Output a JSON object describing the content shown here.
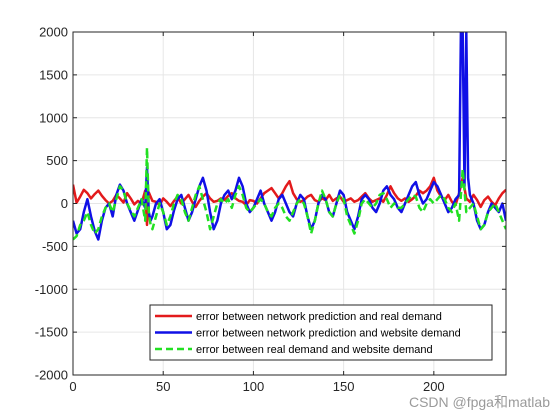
{
  "chart_data": {
    "type": "line",
    "title": "",
    "xlabel": "",
    "ylabel": "",
    "xlim": [
      0,
      240
    ],
    "ylim": [
      -2000,
      2000
    ],
    "xticks": [
      0,
      50,
      100,
      150,
      200
    ],
    "yticks": [
      -2000,
      -1500,
      -1000,
      -500,
      0,
      500,
      1000,
      1500,
      2000
    ],
    "grid": true,
    "legend_position": "bottom-right",
    "series": [
      {
        "name": "error between network prediction and real demand",
        "color": "#e31a1c",
        "style": "solid",
        "x": [
          0,
          2,
          4,
          6,
          8,
          10,
          12,
          14,
          16,
          18,
          20,
          22,
          24,
          26,
          28,
          30,
          32,
          34,
          36,
          38,
          40,
          41,
          42,
          43,
          44,
          46,
          48,
          50,
          52,
          54,
          56,
          58,
          60,
          62,
          64,
          66,
          68,
          70,
          72,
          74,
          76,
          78,
          80,
          82,
          84,
          86,
          88,
          90,
          92,
          94,
          96,
          98,
          100,
          102,
          104,
          106,
          108,
          110,
          112,
          114,
          116,
          118,
          120,
          122,
          124,
          126,
          128,
          130,
          132,
          134,
          136,
          138,
          140,
          142,
          144,
          146,
          148,
          150,
          152,
          154,
          156,
          158,
          160,
          162,
          164,
          166,
          168,
          170,
          172,
          174,
          176,
          178,
          180,
          182,
          184,
          186,
          188,
          190,
          192,
          194,
          196,
          198,
          200,
          202,
          204,
          206,
          208,
          210,
          212,
          214,
          216,
          218,
          220,
          222,
          224,
          226,
          228,
          230,
          232,
          234,
          236,
          238,
          240
        ],
        "y": [
          220,
          10,
          80,
          160,
          120,
          60,
          110,
          150,
          90,
          40,
          0,
          30,
          100,
          60,
          10,
          120,
          60,
          -10,
          30,
          0,
          150,
          -250,
          130,
          80,
          30,
          20,
          -20,
          60,
          20,
          -30,
          30,
          80,
          0,
          50,
          100,
          20,
          -40,
          30,
          80,
          120,
          60,
          20,
          30,
          60,
          40,
          90,
          120,
          60,
          30,
          20,
          -20,
          40,
          30,
          0,
          60,
          120,
          150,
          180,
          120,
          60,
          120,
          200,
          260,
          120,
          50,
          20,
          40,
          80,
          100,
          40,
          20,
          60,
          40,
          100,
          30,
          60,
          80,
          20,
          40,
          60,
          20,
          40,
          80,
          120,
          60,
          20,
          40,
          60,
          20,
          100,
          200,
          120,
          60,
          30,
          60,
          20,
          50,
          90,
          150,
          120,
          150,
          200,
          300,
          150,
          80,
          40,
          100,
          20,
          -20,
          120,
          300,
          60,
          20,
          100,
          40,
          -40,
          40,
          80,
          20,
          -20,
          60,
          120,
          160
        ]
      },
      {
        "name": "error between network prediction and website demand",
        "color": "#1010e6",
        "style": "solid",
        "x": [
          0,
          2,
          4,
          6,
          8,
          10,
          12,
          14,
          16,
          18,
          20,
          22,
          24,
          26,
          28,
          30,
          32,
          34,
          36,
          38,
          40,
          41,
          42,
          43,
          44,
          46,
          48,
          50,
          52,
          54,
          56,
          58,
          60,
          62,
          64,
          66,
          68,
          70,
          72,
          74,
          76,
          78,
          80,
          82,
          84,
          86,
          88,
          90,
          92,
          94,
          96,
          98,
          100,
          102,
          104,
          106,
          108,
          110,
          112,
          114,
          116,
          118,
          120,
          122,
          124,
          126,
          128,
          130,
          132,
          134,
          136,
          138,
          140,
          142,
          144,
          146,
          148,
          150,
          152,
          154,
          156,
          158,
          160,
          162,
          164,
          166,
          168,
          170,
          172,
          174,
          176,
          178,
          180,
          182,
          184,
          186,
          188,
          190,
          192,
          194,
          196,
          198,
          200,
          202,
          204,
          206,
          208,
          210,
          212,
          214,
          215,
          216,
          217,
          218,
          219,
          220,
          222,
          224,
          226,
          228,
          230,
          232,
          234,
          236,
          238,
          240
        ],
        "y": [
          -200,
          -350,
          -300,
          -100,
          50,
          -150,
          -320,
          -420,
          -200,
          -50,
          0,
          -150,
          100,
          220,
          150,
          0,
          -100,
          -200,
          -80,
          50,
          -50,
          420,
          -100,
          -200,
          -150,
          0,
          50,
          -100,
          -300,
          -250,
          -80,
          50,
          100,
          -50,
          -200,
          -100,
          50,
          200,
          300,
          150,
          -100,
          -300,
          -200,
          0,
          100,
          150,
          50,
          150,
          300,
          200,
          0,
          -100,
          -50,
          50,
          150,
          0,
          -100,
          -200,
          -100,
          50,
          100,
          0,
          -100,
          -150,
          0,
          100,
          50,
          -150,
          -300,
          -200,
          0,
          100,
          50,
          -100,
          -150,
          0,
          150,
          100,
          -100,
          -200,
          -300,
          -150,
          50,
          100,
          50,
          -50,
          -100,
          0,
          150,
          200,
          100,
          50,
          -50,
          -100,
          0,
          100,
          200,
          250,
          100,
          0,
          50,
          150,
          250,
          200,
          100,
          0,
          -100,
          -50,
          50,
          100,
          2000,
          2000,
          200,
          2000,
          300,
          100,
          0,
          -200,
          -300,
          -250,
          -100,
          0,
          -50,
          -100,
          0,
          -200
        ]
      },
      {
        "name": "error between real demand and website demand",
        "color": "#22e022",
        "style": "dashed",
        "x": [
          0,
          2,
          4,
          6,
          8,
          10,
          12,
          14,
          16,
          18,
          20,
          22,
          24,
          26,
          28,
          30,
          32,
          34,
          36,
          38,
          40,
          41,
          42,
          43,
          44,
          46,
          48,
          50,
          52,
          54,
          56,
          58,
          60,
          62,
          64,
          66,
          68,
          70,
          72,
          74,
          76,
          78,
          80,
          82,
          84,
          86,
          88,
          90,
          92,
          94,
          96,
          98,
          100,
          102,
          104,
          106,
          108,
          110,
          112,
          114,
          116,
          118,
          120,
          122,
          124,
          126,
          128,
          130,
          132,
          134,
          136,
          138,
          140,
          142,
          144,
          146,
          148,
          150,
          152,
          154,
          156,
          158,
          160,
          162,
          164,
          166,
          168,
          170,
          172,
          174,
          176,
          178,
          180,
          182,
          184,
          186,
          188,
          190,
          192,
          194,
          196,
          198,
          200,
          202,
          204,
          206,
          208,
          210,
          212,
          214,
          216,
          218,
          220,
          222,
          224,
          226,
          228,
          230,
          232,
          234,
          236,
          238,
          240
        ],
        "y": [
          -420,
          -380,
          -250,
          -200,
          -100,
          -250,
          -350,
          -300,
          -150,
          -50,
          0,
          -100,
          50,
          200,
          150,
          0,
          -80,
          -150,
          -50,
          50,
          -200,
          650,
          -100,
          -250,
          -300,
          -150,
          0,
          -100,
          -250,
          -150,
          0,
          100,
          50,
          -100,
          -200,
          -50,
          100,
          200,
          50,
          -100,
          -300,
          -150,
          0,
          50,
          0,
          50,
          -50,
          100,
          200,
          100,
          -50,
          -100,
          -50,
          0,
          50,
          0,
          -100,
          -150,
          -50,
          0,
          -50,
          -150,
          -200,
          -100,
          0,
          50,
          0,
          -150,
          -350,
          -200,
          0,
          150,
          50,
          -100,
          -150,
          0,
          100,
          50,
          -150,
          -250,
          -350,
          -200,
          0,
          50,
          0,
          -50,
          0,
          100,
          120,
          50,
          -50,
          0,
          -50,
          -50,
          0,
          50,
          100,
          80,
          -50,
          -100,
          0,
          50,
          0,
          50,
          100,
          50,
          -50,
          -100,
          0,
          -200,
          400,
          -100,
          -50,
          0,
          -150,
          -300,
          -250,
          -100,
          -50,
          0,
          -100,
          -200,
          -300
        ]
      }
    ]
  },
  "watermark": "CSDN @fpga和matlab"
}
